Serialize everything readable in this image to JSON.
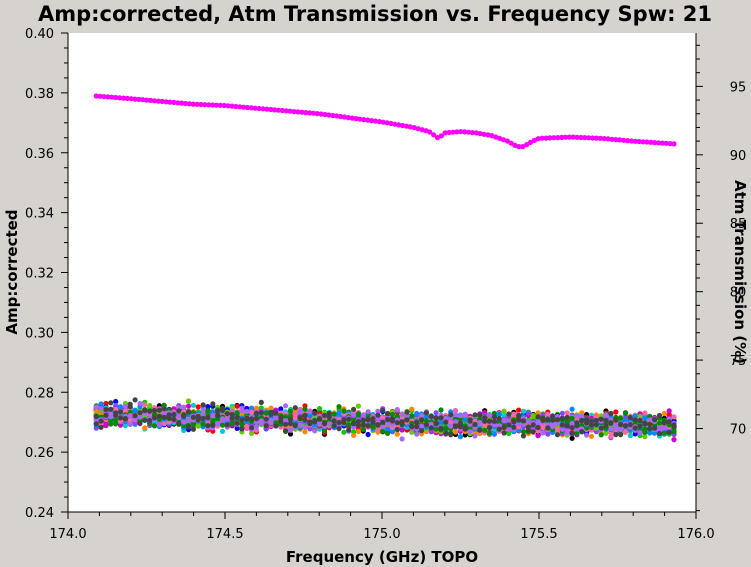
{
  "chart_data": {
    "type": "scatter",
    "title": "Amp:corrected, Atm Transmission vs. Frequency Spw: 21",
    "xlabel": "Frequency (GHz) TOPO",
    "ylabel": "Amp:corrected",
    "y2label": "Atm Transmission (%)",
    "xlim": [
      174.0,
      176.0
    ],
    "ylim": [
      0.24,
      0.4
    ],
    "y2lim": [
      63.9,
      98.9
    ],
    "x_ticks": [
      "174.0",
      "174.5",
      "175.0",
      "175.5",
      "176.0"
    ],
    "y_ticks": [
      "0.24",
      "0.26",
      "0.28",
      "0.30",
      "0.32",
      "0.34",
      "0.36",
      "0.38",
      "0.40"
    ],
    "y2_ticks": [
      "70",
      "75",
      "80",
      "85",
      "90",
      "95"
    ],
    "grid": false,
    "series": [
      {
        "axis": "y2",
        "color": "#ff00ff",
        "x": [
          174.09,
          174.2,
          174.3,
          174.4,
          174.5,
          174.6,
          174.7,
          174.8,
          174.9,
          175.0,
          175.1,
          175.15,
          175.18,
          175.2,
          175.25,
          175.3,
          175.35,
          175.4,
          175.43,
          175.45,
          175.48,
          175.5,
          175.6,
          175.7,
          175.8,
          175.93
        ],
        "y": [
          94.3,
          94.1,
          93.9,
          93.7,
          93.6,
          93.4,
          93.2,
          93.0,
          92.7,
          92.4,
          92.0,
          91.7,
          91.2,
          91.6,
          91.7,
          91.6,
          91.4,
          91.0,
          90.6,
          90.6,
          91.0,
          91.2,
          91.3,
          91.2,
          91.0,
          90.8
        ]
      },
      {
        "axis": "y",
        "type": "band",
        "colors": [
          "#000000",
          "#ff0000",
          "#00cc00",
          "#0000ff",
          "#00cccc",
          "#cc00cc",
          "#ff8800",
          "#8844ff",
          "#66cc00",
          "#0088ff",
          "#ff66aa",
          "#008800",
          "#aa66ff",
          "#444444"
        ],
        "x": [
          174.09,
          174.5,
          175.0,
          175.5,
          175.93
        ],
        "y": [
          0.2725,
          0.2715,
          0.27,
          0.2695,
          0.269
        ],
        "spread": 0.0045
      }
    ]
  }
}
